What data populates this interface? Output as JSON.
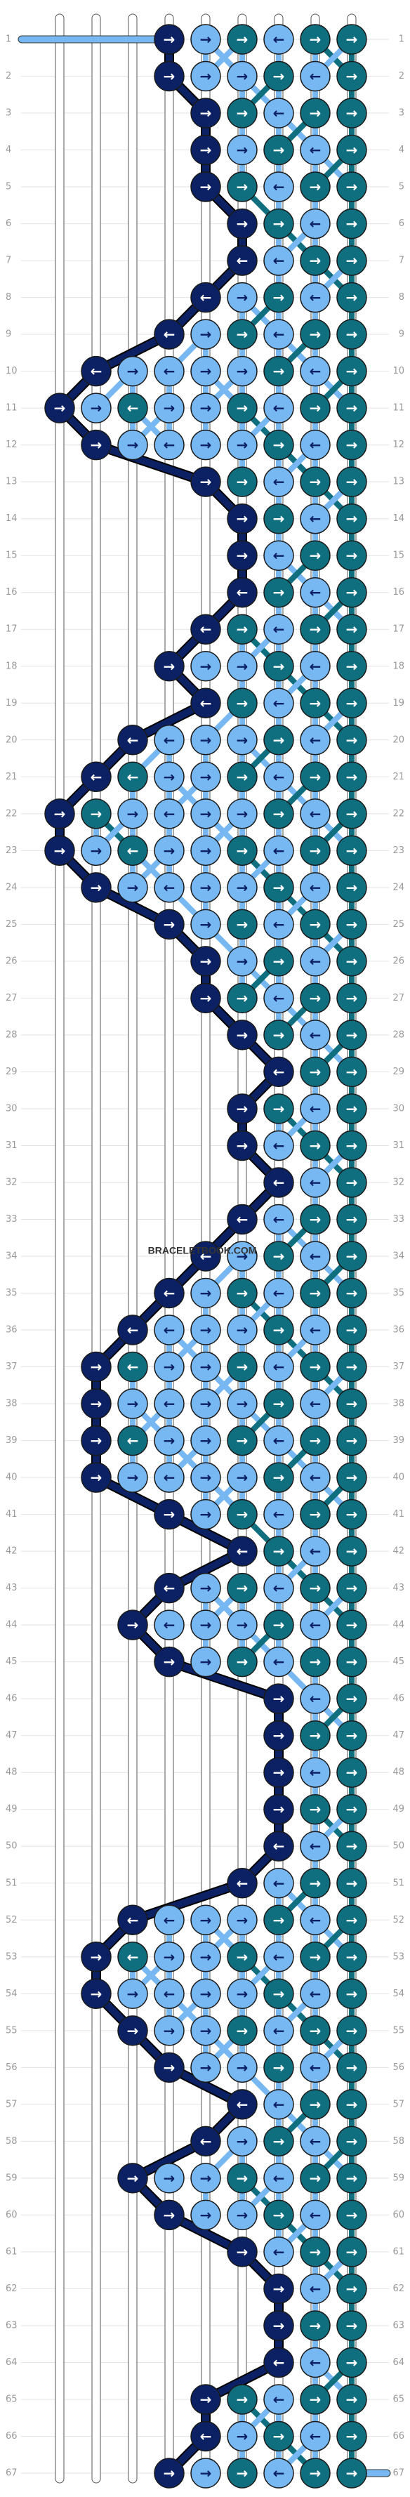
{
  "watermark": "BRACELETBOOK.COM",
  "palette": {
    "n": "#0b2163",
    "l": "#77b8f2",
    "t": "#106f7e"
  },
  "rows": [
    {
      "label": "1",
      "colors": "   nltltt",
      "arrows": "   →→→←→→"
    },
    {
      "label": "2",
      "colors": "   nlltlt",
      "arrows": "   →→→→←→"
    },
    {
      "label": "3",
      "colors": "    ntltt",
      "arrows": "    →→←→→"
    },
    {
      "label": "4",
      "colors": "    nltlt",
      "arrows": "    →→→←→"
    },
    {
      "label": "5",
      "colors": "    ntltt",
      "arrows": "    →→←→→"
    },
    {
      "label": "6",
      "colors": "     ntlt",
      "arrows": "     →→←→"
    },
    {
      "label": "7",
      "colors": "     nltt",
      "arrows": "     ←←→→"
    },
    {
      "label": "8",
      "colors": "    nltlt",
      "arrows": "    ←→→←→"
    },
    {
      "label": "9",
      "colors": "   nltltt",
      "arrows": "   ←→→←→→"
    },
    {
      "label": "10",
      "colors": " nlllltlt",
      "arrows": " ←→←→→→←→"
    },
    {
      "label": "11",
      "colors": "nltlltltt",
      "arrows": "→→←→→→←→→"
    },
    {
      "label": "12",
      "colors": " nlllltlt",
      "arrows": " →→←→→→←→"
    },
    {
      "label": "13",
      "colors": "    ntltt",
      "arrows": "    →→←→→"
    },
    {
      "label": "14",
      "colors": "     ntlt",
      "arrows": "     →→←→"
    },
    {
      "label": "15",
      "colors": "     nltt",
      "arrows": "     →←→→"
    },
    {
      "label": "16",
      "colors": "     ntlt",
      "arrows": "     ←→←→"
    },
    {
      "label": "17",
      "colors": "    ntltt",
      "arrows": "    ←→←→→"
    },
    {
      "label": "18",
      "colors": "   nlltlt",
      "arrows": "   →→→→←→"
    },
    {
      "label": "19",
      "colors": "    ntltt",
      "arrows": "    ←→←→→"
    },
    {
      "label": "20",
      "colors": "  nllltlt",
      "arrows": "  ←←→→→←→"
    },
    {
      "label": "21",
      "colors": " ntlltltt",
      "arrows": " ←←→→→←→→"
    },
    {
      "label": "22",
      "colors": "ntlllltlt",
      "arrows": "→→→←→→→←→"
    },
    {
      "label": "23",
      "colors": "nltlltltt",
      "arrows": "→→←→→→←→→"
    },
    {
      "label": "24",
      "colors": " nlllltlt",
      "arrows": " →→←→→→←→"
    },
    {
      "label": "25",
      "colors": "   nltltt",
      "arrows": "   →→→←→→"
    },
    {
      "label": "26",
      "colors": "    nltlt",
      "arrows": "    →→→←→"
    },
    {
      "label": "27",
      "colors": "    ntltt",
      "arrows": "    →→←→→"
    },
    {
      "label": "28",
      "colors": "     ntlt",
      "arrows": "     →→←→"
    },
    {
      "label": "29",
      "colors": "      ntt",
      "arrows": "      ←→→"
    },
    {
      "label": "30",
      "colors": "     ntlt",
      "arrows": "     →→←→"
    },
    {
      "label": "31",
      "colors": "     nltt",
      "arrows": "     →←→→"
    },
    {
      "label": "32",
      "colors": "      nlt",
      "arrows": "      ←←→"
    },
    {
      "label": "33",
      "colors": "     nltt",
      "arrows": "     ←←→→"
    },
    {
      "label": "34",
      "colors": "    nltlt",
      "arrows": "    ←→→←→"
    },
    {
      "label": "35",
      "colors": "   nltltt",
      "arrows": "   ←→→←→→"
    },
    {
      "label": "36",
      "colors": "  nllltlt",
      "arrows": "  ←←→→→←→"
    },
    {
      "label": "37",
      "colors": " ntlltltt",
      "arrows": " →←→→→←→→"
    },
    {
      "label": "38",
      "colors": " nlllltlt",
      "arrows": " →→←→→→←→"
    },
    {
      "label": "39",
      "colors": " ntlltltt",
      "arrows": " →←→→→←→→"
    },
    {
      "label": "40",
      "colors": " nlllltlt",
      "arrows": " →→←→→→←→"
    },
    {
      "label": "41",
      "colors": "   nltltt",
      "arrows": "   →→→←→→"
    },
    {
      "label": "42",
      "colors": "     ntlt",
      "arrows": "     ←→←→"
    },
    {
      "label": "43",
      "colors": "   nltltt",
      "arrows": "   ←→→←→→"
    },
    {
      "label": "44",
      "colors": "  nllltlt",
      "arrows": "  →←→→→←→"
    },
    {
      "label": "45",
      "colors": "   nltltt",
      "arrows": "   →→→←→→"
    },
    {
      "label": "46",
      "colors": "      nlt",
      "arrows": "      →←→"
    },
    {
      "label": "47",
      "colors": "      ntt",
      "arrows": "      →→→"
    },
    {
      "label": "48",
      "colors": "      nlt",
      "arrows": "      →←→"
    },
    {
      "label": "49",
      "colors": "      ntt",
      "arrows": "      →→→"
    },
    {
      "label": "50",
      "colors": "      nlt",
      "arrows": "      ←←→"
    },
    {
      "label": "51",
      "colors": "     nltt",
      "arrows": "     ←←→→"
    },
    {
      "label": "52",
      "colors": "  nllltlt",
      "arrows": "  ←←→→→←→"
    },
    {
      "label": "53",
      "colors": " ntlltltt",
      "arrows": " →←→→→←→→"
    },
    {
      "label": "54",
      "colors": " nlllltlt",
      "arrows": " →→←→→→←→"
    },
    {
      "label": "55",
      "colors": "  nlltltt",
      "arrows": "  →→→→←→→"
    },
    {
      "label": "56",
      "colors": "   nlltlt",
      "arrows": "   →→→→←→"
    },
    {
      "label": "57",
      "colors": "     nltt",
      "arrows": "     ←←→→"
    },
    {
      "label": "58",
      "colors": "    nltlt",
      "arrows": "    ←→→←→"
    },
    {
      "label": "59",
      "colors": "  nlltltt",
      "arrows": "  →→→→←→→"
    },
    {
      "label": "60",
      "colors": "   nlltlt",
      "arrows": "   →→→→←→"
    },
    {
      "label": "61",
      "colors": "     nltt",
      "arrows": "     →←→→"
    },
    {
      "label": "62",
      "colors": "      nlt",
      "arrows": "      →←→"
    },
    {
      "label": "63",
      "colors": "      ntt",
      "arrows": "      →→→"
    },
    {
      "label": "64",
      "colors": "      nlt",
      "arrows": "      ←←→"
    },
    {
      "label": "65",
      "colors": "    ntltt",
      "arrows": "    →→←→→"
    },
    {
      "label": "66",
      "colors": "    nltlt",
      "arrows": "    ←→→←→"
    },
    {
      "label": "67",
      "colors": "   nltltt",
      "arrows": "   →→→←→→"
    }
  ]
}
